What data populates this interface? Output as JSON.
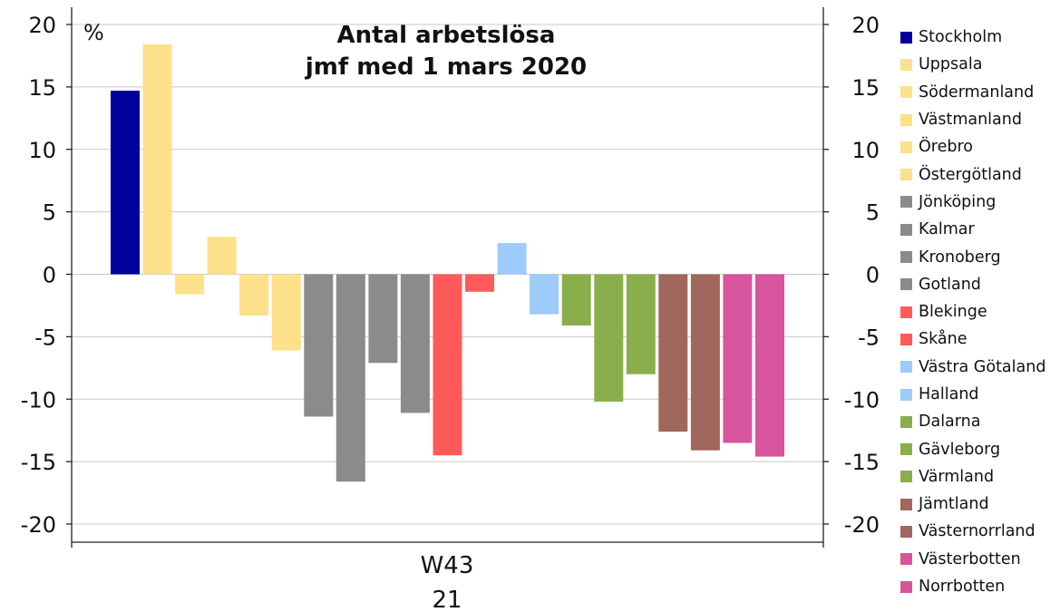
{
  "chart_data": {
    "type": "bar",
    "title": "Antal arbetslösa",
    "subtitle": "jmf med 1 mars 2020",
    "unit_label": "%",
    "x_category": "W43",
    "x_category_sub": "21",
    "ylim": [
      -20,
      20
    ],
    "yticks": [
      "20",
      "15",
      "10",
      "5",
      "0",
      "-5",
      "-10",
      "-15",
      "-20"
    ],
    "ytick_values": [
      20,
      15,
      10,
      5,
      0,
      -5,
      -10,
      -15,
      -20
    ],
    "grid": true,
    "legend_position": "right",
    "series": [
      {
        "name": "Stockholm",
        "value": 14.7,
        "color": "#00009c"
      },
      {
        "name": "Uppsala",
        "value": 18.4,
        "color": "#fde08a"
      },
      {
        "name": "Södermanland",
        "value": -1.6,
        "color": "#fde08a"
      },
      {
        "name": "Västmanland",
        "value": 3.0,
        "color": "#fde08a"
      },
      {
        "name": "Örebro",
        "value": -3.3,
        "color": "#fde08a"
      },
      {
        "name": "Östergötland",
        "value": -6.1,
        "color": "#fde08a"
      },
      {
        "name": "Jönköping",
        "value": -11.4,
        "color": "#8a8b8c"
      },
      {
        "name": "Kalmar",
        "value": -16.6,
        "color": "#8a8b8c"
      },
      {
        "name": "Kronoberg",
        "value": -7.1,
        "color": "#8a8b8c"
      },
      {
        "name": "Gotland",
        "value": -11.1,
        "color": "#8a8b8c"
      },
      {
        "name": "Blekinge",
        "value": -14.5,
        "color": "#ff5a5a"
      },
      {
        "name": "Skåne",
        "value": -1.4,
        "color": "#ff5a5a"
      },
      {
        "name": "Västra Götaland",
        "value": 2.5,
        "color": "#9dcbfa"
      },
      {
        "name": "Halland",
        "value": -3.2,
        "color": "#9dcbfa"
      },
      {
        "name": "Dalarna",
        "value": -4.1,
        "color": "#8aae4c"
      },
      {
        "name": "Gävleborg",
        "value": -10.2,
        "color": "#8aae4c"
      },
      {
        "name": "Värmland",
        "value": -8.0,
        "color": "#8aae4c"
      },
      {
        "name": "Jämtland",
        "value": -12.6,
        "color": "#a0685c"
      },
      {
        "name": "Västernorrland",
        "value": -14.1,
        "color": "#a0685c"
      },
      {
        "name": "Västerbotten",
        "value": -13.5,
        "color": "#d6559c"
      },
      {
        "name": "Norrbotten",
        "value": -14.6,
        "color": "#d6559c"
      }
    ]
  }
}
